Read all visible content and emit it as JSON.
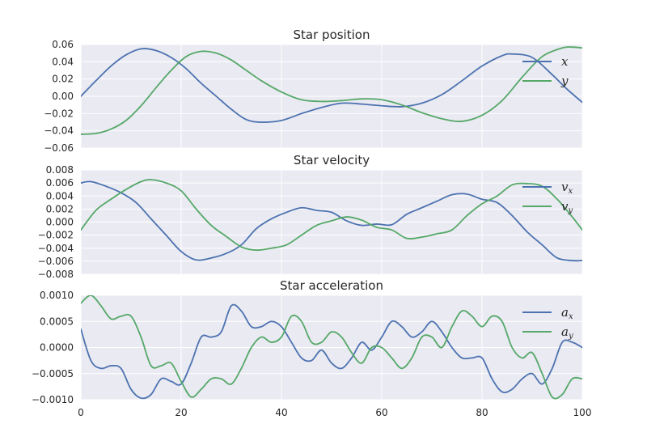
{
  "chart_data": [
    {
      "type": "line",
      "title": "Star position",
      "xlabel": "",
      "ylabel": "",
      "xlim": [
        0,
        100
      ],
      "ylim": [
        -0.06,
        0.06
      ],
      "xticks": [
        "0",
        "20",
        "40",
        "60",
        "80",
        "100"
      ],
      "yticks": [
        {
          "v": -0.06,
          "label": "−0.06"
        },
        {
          "v": -0.04,
          "label": "−0.04"
        },
        {
          "v": -0.02,
          "label": "−0.02"
        },
        {
          "v": 0.0,
          "label": "0.00"
        },
        {
          "v": 0.02,
          "label": "0.02"
        },
        {
          "v": 0.04,
          "label": "0.04"
        },
        {
          "v": 0.06,
          "label": "0.06"
        }
      ],
      "grid": true,
      "legend_position": "top-right",
      "series": [
        {
          "name": "x",
          "sub": "",
          "color": "#4c72b0",
          "x": [
            0,
            3,
            6,
            9,
            12,
            15,
            18,
            21,
            24,
            27,
            30,
            33,
            36,
            40,
            44,
            48,
            52,
            56,
            60,
            64,
            68,
            72,
            76,
            80,
            84,
            86,
            90,
            94,
            97,
            100
          ],
          "y": [
            0.0,
            0.018,
            0.035,
            0.048,
            0.055,
            0.053,
            0.045,
            0.032,
            0.015,
            0.0,
            -0.015,
            -0.027,
            -0.03,
            -0.028,
            -0.02,
            -0.013,
            -0.008,
            -0.009,
            -0.011,
            -0.012,
            -0.008,
            0.002,
            0.018,
            0.035,
            0.047,
            0.049,
            0.045,
            0.025,
            0.008,
            -0.007
          ]
        },
        {
          "name": "y",
          "sub": "",
          "color": "#55a868",
          "x": [
            0,
            3,
            6,
            9,
            12,
            15,
            18,
            21,
            24,
            27,
            30,
            33,
            36,
            40,
            44,
            48,
            52,
            56,
            60,
            64,
            68,
            72,
            76,
            80,
            84,
            88,
            92,
            96,
            98,
            100
          ],
          "y": [
            -0.044,
            -0.043,
            -0.038,
            -0.028,
            -0.011,
            0.01,
            0.03,
            0.046,
            0.052,
            0.05,
            0.042,
            0.03,
            0.018,
            0.005,
            -0.004,
            -0.006,
            -0.005,
            -0.003,
            -0.004,
            -0.01,
            -0.019,
            -0.026,
            -0.029,
            -0.022,
            -0.005,
            0.022,
            0.046,
            0.056,
            0.057,
            0.056
          ]
        }
      ]
    },
    {
      "type": "line",
      "title": "Star velocity",
      "xlabel": "",
      "ylabel": "",
      "xlim": [
        0,
        100
      ],
      "ylim": [
        -0.008,
        0.008
      ],
      "xticks": [
        "0",
        "20",
        "40",
        "60",
        "80",
        "100"
      ],
      "yticks": [
        {
          "v": -0.008,
          "label": "−0.008"
        },
        {
          "v": -0.006,
          "label": "−0.006"
        },
        {
          "v": -0.004,
          "label": "−0.004"
        },
        {
          "v": -0.002,
          "label": "−0.002"
        },
        {
          "v": 0.0,
          "label": "0.000"
        },
        {
          "v": 0.002,
          "label": "0.002"
        },
        {
          "v": 0.004,
          "label": "0.004"
        },
        {
          "v": 0.006,
          "label": "0.006"
        },
        {
          "v": 0.008,
          "label": "0.008"
        }
      ],
      "grid": true,
      "legend_position": "top-right",
      "series": [
        {
          "name": "v",
          "sub": "x",
          "color": "#4c72b0",
          "x": [
            0,
            2,
            5,
            8,
            11,
            14,
            17,
            20,
            23,
            26,
            29,
            32,
            35,
            38,
            41,
            44,
            47,
            50,
            53,
            56,
            59,
            62,
            65,
            68,
            71,
            74,
            77,
            80,
            83,
            86,
            89,
            92,
            95,
            98,
            100
          ],
          "y": [
            0.006,
            0.0062,
            0.0055,
            0.0045,
            0.003,
            0.0005,
            -0.002,
            -0.0045,
            -0.0058,
            -0.0055,
            -0.0048,
            -0.0035,
            -0.001,
            0.0005,
            0.0015,
            0.0022,
            0.0018,
            0.0015,
            0.0002,
            -0.0005,
            -0.0003,
            -0.0004,
            0.0012,
            0.0022,
            0.0032,
            0.0042,
            0.0043,
            0.0035,
            0.003,
            0.001,
            -0.0015,
            -0.0035,
            -0.0055,
            -0.0059,
            -0.0059
          ]
        },
        {
          "name": "v",
          "sub": "y",
          "color": "#55a868",
          "x": [
            0,
            3,
            6,
            9,
            12,
            14,
            17,
            20,
            23,
            26,
            29,
            32,
            35,
            38,
            41,
            44,
            47,
            50,
            53,
            56,
            59,
            62,
            65,
            68,
            71,
            74,
            77,
            80,
            83,
            86,
            89,
            92,
            95,
            98,
            100
          ],
          "y": [
            -0.0012,
            0.0018,
            0.0035,
            0.005,
            0.0062,
            0.0065,
            0.006,
            0.0048,
            0.002,
            -0.0005,
            -0.0022,
            -0.0038,
            -0.0043,
            -0.004,
            -0.0035,
            -0.002,
            -0.0005,
            0.0002,
            0.0008,
            0.0003,
            -0.0008,
            -0.0012,
            -0.0025,
            -0.0023,
            -0.0018,
            -0.0012,
            0.001,
            0.0028,
            0.004,
            0.0057,
            0.0059,
            0.0055,
            0.0035,
            0.0008,
            -0.0012
          ]
        }
      ]
    },
    {
      "type": "line",
      "title": "Star acceleration",
      "xlabel": "",
      "ylabel": "",
      "xlim": [
        0,
        100
      ],
      "ylim": [
        -0.001,
        0.001
      ],
      "xticks": [
        "0",
        "20",
        "40",
        "60",
        "80",
        "100"
      ],
      "yticks": [
        {
          "v": -0.001,
          "label": "−0.0010"
        },
        {
          "v": -0.0005,
          "label": "−0.0005"
        },
        {
          "v": 0.0,
          "label": "0.0000"
        },
        {
          "v": 0.0005,
          "label": "0.0005"
        },
        {
          "v": 0.001,
          "label": "0.0010"
        }
      ],
      "grid": true,
      "legend_position": "top-right",
      "series": [
        {
          "name": "a",
          "sub": "x",
          "color": "#4c72b0",
          "x": [
            0,
            2,
            4,
            6,
            8,
            10,
            12,
            14,
            16,
            18,
            20,
            22,
            24,
            26,
            28,
            30,
            32,
            34,
            36,
            38,
            40,
            42,
            44,
            46,
            48,
            50,
            52,
            54,
            56,
            58,
            60,
            62,
            64,
            66,
            68,
            70,
            72,
            74,
            76,
            78,
            80,
            82,
            84,
            86,
            88,
            90,
            92,
            94,
            96,
            98,
            100
          ],
          "y": [
            0.00035,
            -0.00025,
            -0.0004,
            -0.00035,
            -0.0004,
            -0.0008,
            -0.00097,
            -0.0009,
            -0.0006,
            -0.00065,
            -0.0007,
            -0.0003,
            0.0002,
            0.0002,
            0.0003,
            0.0008,
            0.0007,
            0.0004,
            0.0004,
            0.0005,
            0.0004,
            0.0001,
            -0.0002,
            -0.00025,
            -5e-05,
            -0.0003,
            -0.0004,
            -0.0002,
            0.0001,
            -5e-05,
            0.0002,
            0.0005,
            0.0004,
            0.0002,
            0.0003,
            0.0005,
            0.0003,
            0.0,
            -0.0002,
            -0.0002,
            -0.0002,
            -0.0006,
            -0.00085,
            -0.0008,
            -0.0006,
            -0.0005,
            -0.0007,
            -0.0004,
            0.0001,
            0.0001,
            0.0
          ]
        },
        {
          "name": "a",
          "sub": "y",
          "color": "#55a868",
          "x": [
            0,
            2,
            4,
            6,
            8,
            10,
            12,
            14,
            16,
            18,
            20,
            22,
            24,
            26,
            28,
            30,
            32,
            34,
            36,
            38,
            40,
            42,
            44,
            46,
            48,
            50,
            52,
            54,
            56,
            58,
            60,
            62,
            64,
            66,
            68,
            70,
            72,
            74,
            76,
            78,
            80,
            82,
            84,
            86,
            88,
            90,
            92,
            94,
            96,
            98,
            100
          ],
          "y": [
            0.00085,
            0.001,
            0.0008,
            0.00055,
            0.0006,
            0.0006,
            0.0002,
            -0.00035,
            -0.00035,
            -0.0003,
            -0.00065,
            -0.00095,
            -0.0008,
            -0.0006,
            -0.0006,
            -0.0007,
            -0.0004,
            0.0,
            0.0002,
            0.0001,
            0.0002,
            0.0006,
            0.0005,
            0.0001,
            0.0001,
            0.0003,
            0.0002,
            -0.0001,
            -0.0003,
            0.0,
            0.0,
            -0.0002,
            -0.0004,
            -0.0002,
            0.0002,
            0.0002,
            0.0,
            0.0004,
            0.0007,
            0.0006,
            0.0004,
            0.0006,
            0.0005,
            0.0,
            -0.0002,
            -0.0001,
            -0.0005,
            -0.00095,
            -0.0009,
            -0.0006,
            -0.0006
          ]
        }
      ]
    }
  ]
}
